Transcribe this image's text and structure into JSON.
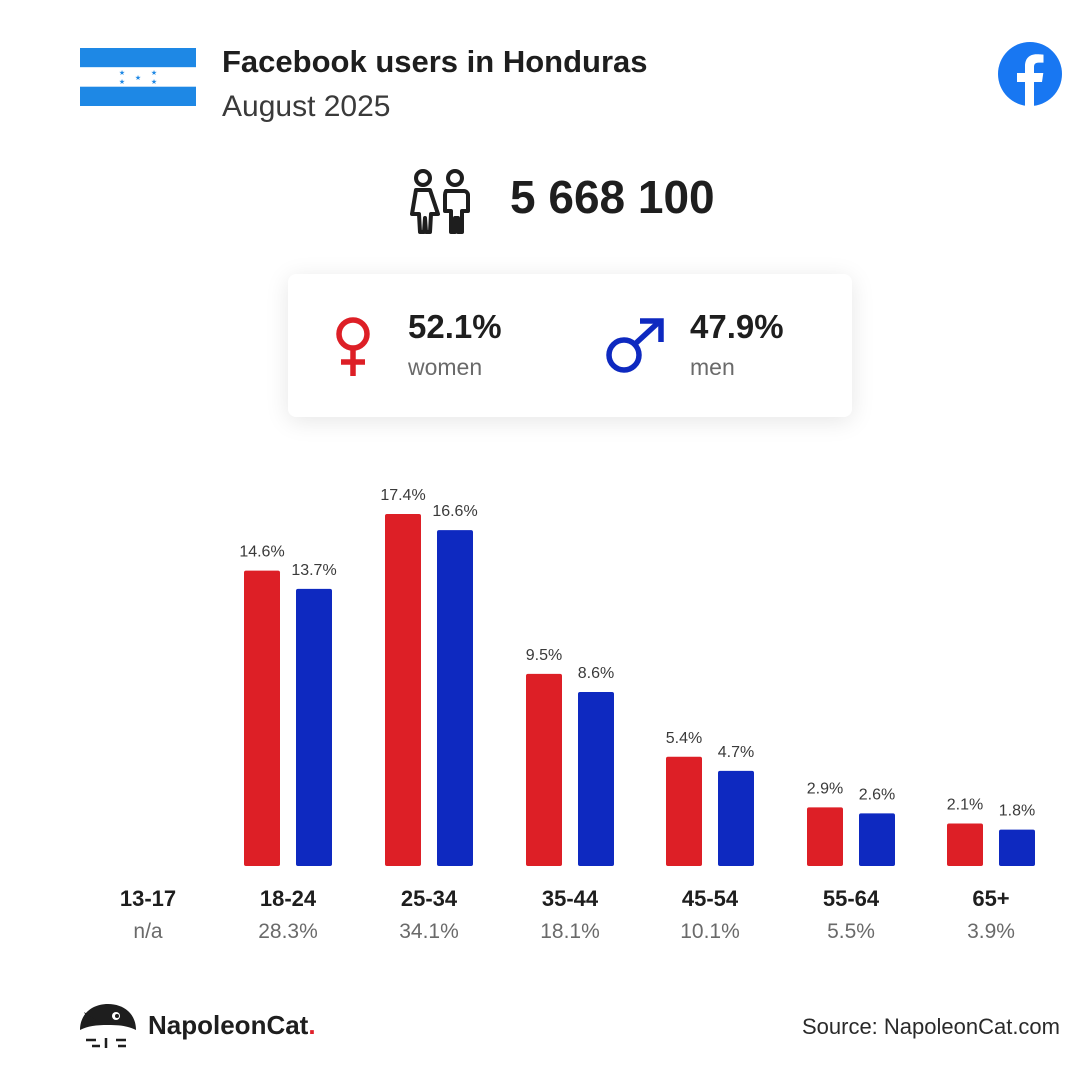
{
  "header": {
    "title": "Facebook users in Honduras",
    "subtitle": "August 2025",
    "flag_icon": "honduras-flag",
    "social_icon": "facebook-icon"
  },
  "total": {
    "icon": "users-icon",
    "value": "5 668 100"
  },
  "gender": {
    "women": {
      "pct": "52.1%",
      "label": "women",
      "icon": "female-symbol-icon"
    },
    "men": {
      "pct": "47.9%",
      "label": "men",
      "icon": "male-symbol-icon"
    }
  },
  "colors": {
    "women": "#dd1f26",
    "men": "#0e29c0",
    "flag_blue": "#1e88e5",
    "facebook_blue": "#1877f2"
  },
  "chart_data": {
    "type": "bar",
    "categories": [
      "13-17",
      "18-24",
      "25-34",
      "35-44",
      "45-54",
      "55-64",
      "65+"
    ],
    "totals": [
      "n/a",
      "28.3%",
      "34.1%",
      "18.1%",
      "10.1%",
      "5.5%",
      "3.9%"
    ],
    "series": [
      {
        "name": "women",
        "values": [
          null,
          14.6,
          17.4,
          9.5,
          5.4,
          2.9,
          2.1
        ],
        "labels": [
          "",
          "14.6%",
          "17.4%",
          "9.5%",
          "5.4%",
          "2.9%",
          "2.1%"
        ]
      },
      {
        "name": "men",
        "values": [
          null,
          13.7,
          16.6,
          8.6,
          4.7,
          2.6,
          1.8
        ],
        "labels": [
          "",
          "13.7%",
          "16.6%",
          "8.6%",
          "4.7%",
          "2.6%",
          "1.8%"
        ]
      }
    ],
    "ylim": [
      0,
      17.4
    ]
  },
  "footer": {
    "brand_name": "NapoleonCat",
    "brand_dot": ".",
    "source": "Source: NapoleonCat.com"
  }
}
